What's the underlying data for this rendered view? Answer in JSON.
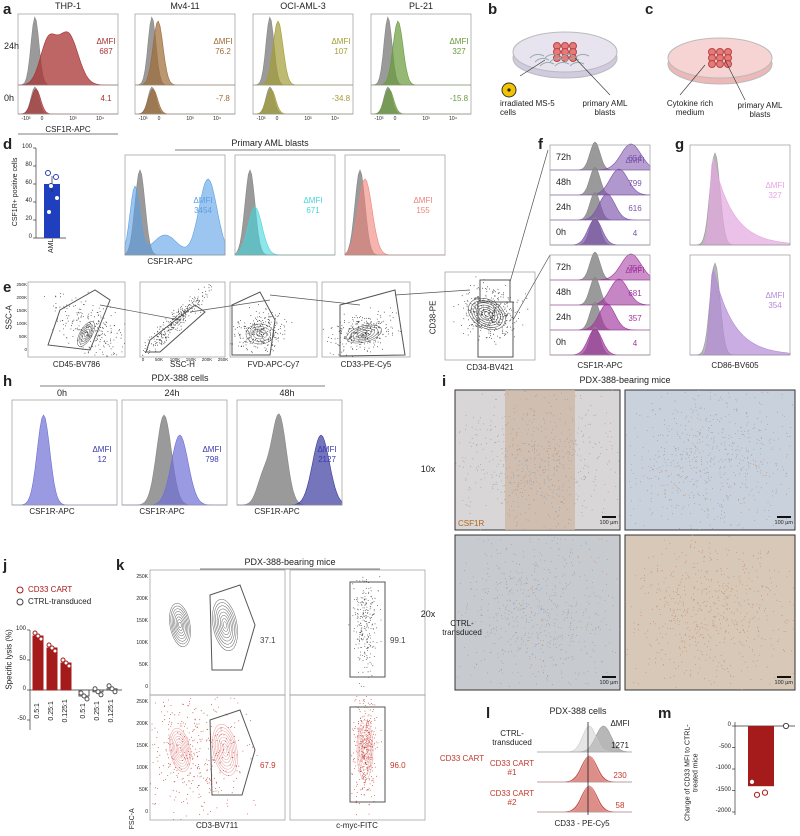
{
  "panel_labels": [
    "a",
    "b",
    "c",
    "d",
    "e",
    "f",
    "g",
    "h",
    "i",
    "j",
    "k",
    "l",
    "m"
  ],
  "a": {
    "cell_lines": [
      "THP-1",
      "Mv4-11",
      "OCI-AML-3",
      "PL-21"
    ],
    "timepoints": [
      "24h",
      "0h"
    ],
    "delta_label": "ΔMFI",
    "mfi_24h": [
      "687",
      "76.2",
      "107",
      "327"
    ],
    "mfi_0h": [
      "4.1",
      "-7.8",
      "-34.8",
      "-15.8"
    ],
    "axis_ticks": [
      "-10³",
      "0",
      "10³",
      "10⁴"
    ],
    "x_label": "CSF1R-APC"
  },
  "b": {
    "labels": [
      "irradiated MS-5 cells",
      "primary AML blasts"
    ]
  },
  "c": {
    "labels": [
      "Cytokine rich medium",
      "primary AML blasts"
    ]
  },
  "d": {
    "y_label": "CSF1R+ positive cells",
    "y_ticks": [
      "0",
      "20",
      "40",
      "60",
      "80",
      "100"
    ],
    "category": "AML",
    "header": "Primary AML blasts",
    "delta_label": "ΔMFI",
    "mfi": [
      "3454",
      "671",
      "155"
    ],
    "x_label": "CSF1R-APC"
  },
  "e": {
    "x_labels": [
      "CD45-BV786",
      "SSC-H",
      "FVD-APC-Cy7",
      "CD33-PE-Cy5",
      "CD34-BV421"
    ],
    "y_labels": [
      "SSC-A",
      "CD38-PE"
    ],
    "y_ticks": [
      "250K",
      "200K",
      "150K",
      "100K",
      "50K",
      "0"
    ],
    "x_ticks": [
      "0",
      "50K",
      "100K",
      "150K",
      "200K",
      "250K"
    ]
  },
  "f": {
    "timepoints": [
      "72h",
      "48h",
      "24h",
      "0h"
    ],
    "delta_label": "ΔMFI",
    "mfi_top": [
      "654",
      "799",
      "616",
      "4"
    ],
    "mfi_bottom": [
      "756",
      "681",
      "357",
      "4"
    ],
    "x_label": "CSF1R-APC"
  },
  "g": {
    "delta_label": "ΔMFI",
    "mfi": [
      "327",
      "354"
    ],
    "x_label": "CD86-BV605"
  },
  "h": {
    "header": "PDX-388 cells",
    "timepoints": [
      "0h",
      "24h",
      "48h"
    ],
    "delta_label": "ΔMFI",
    "mfi": [
      "12",
      "798",
      "2127"
    ],
    "x_label": "CSF1R-APC"
  },
  "i": {
    "header": "PDX-388-bearing mice",
    "magnifications": [
      "10x",
      "20x"
    ],
    "stain": "CSF1R",
    "scale_bar": "100 µm"
  },
  "j": {
    "legend": [
      "CD33 CART",
      "CTRL-transduced"
    ],
    "y_label": "Specific lysis (%)",
    "y_ticks": [
      "100",
      "50",
      "0",
      "-50"
    ],
    "ratios": [
      "0.5:1",
      "0.25:1",
      "0.125:1"
    ]
  },
  "k": {
    "header": "PDX-388-bearing mice",
    "gates": [
      "37.1",
      "99.1",
      "67.9",
      "96.0"
    ],
    "rows": [
      "CTRL-transduced",
      "CD33 CART"
    ],
    "y_label": "FSC-A",
    "x_labels": [
      "CD3-BV711",
      "c-myc-FITC"
    ],
    "y_ticks": [
      "250K",
      "200K",
      "150K",
      "100K",
      "50K",
      "0"
    ]
  },
  "l": {
    "header": "PDX-388 cells",
    "rows": [
      "CTRL-transduced",
      "CD33 CART #1",
      "CD33 CART #2"
    ],
    "delta_label": "ΔMFI",
    "mfi": [
      "1271",
      "230",
      "58"
    ],
    "x_label": "CD33 - PE-Cy5"
  },
  "m": {
    "y_label": "Change of CD33 MFI to CTRL-treated mice",
    "y_ticks": [
      "0",
      "-500",
      "-1000",
      "-1500",
      "-2000"
    ]
  }
}
